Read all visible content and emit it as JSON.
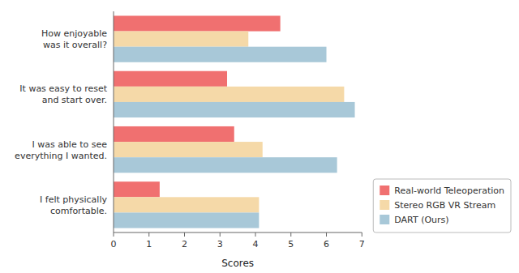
{
  "chart_data": {
    "type": "bar",
    "orientation": "horizontal",
    "categories": [
      "How enjoyable\nwas it overall?",
      "It was easy to reset\nand start over.",
      "I was able to see\neverything I wanted.",
      "I felt physically\ncomfortable."
    ],
    "series": [
      {
        "name": "Real-world Teleoperation",
        "color": "#F07070",
        "values": [
          4.7,
          3.2,
          3.4,
          1.3
        ]
      },
      {
        "name": "Stereo RGB VR Stream",
        "color": "#F5D9A8",
        "values": [
          3.8,
          6.5,
          4.2,
          4.1
        ]
      },
      {
        "name": "DART (Ours)",
        "color": "#A8C8D8",
        "values": [
          6.0,
          6.8,
          6.3,
          4.1
        ]
      }
    ],
    "x_label": "Scores",
    "xlim": [
      0,
      7
    ],
    "xticks": [
      0,
      1,
      2,
      3,
      4,
      5,
      6,
      7
    ],
    "grid": false,
    "legend": "lower right"
  }
}
